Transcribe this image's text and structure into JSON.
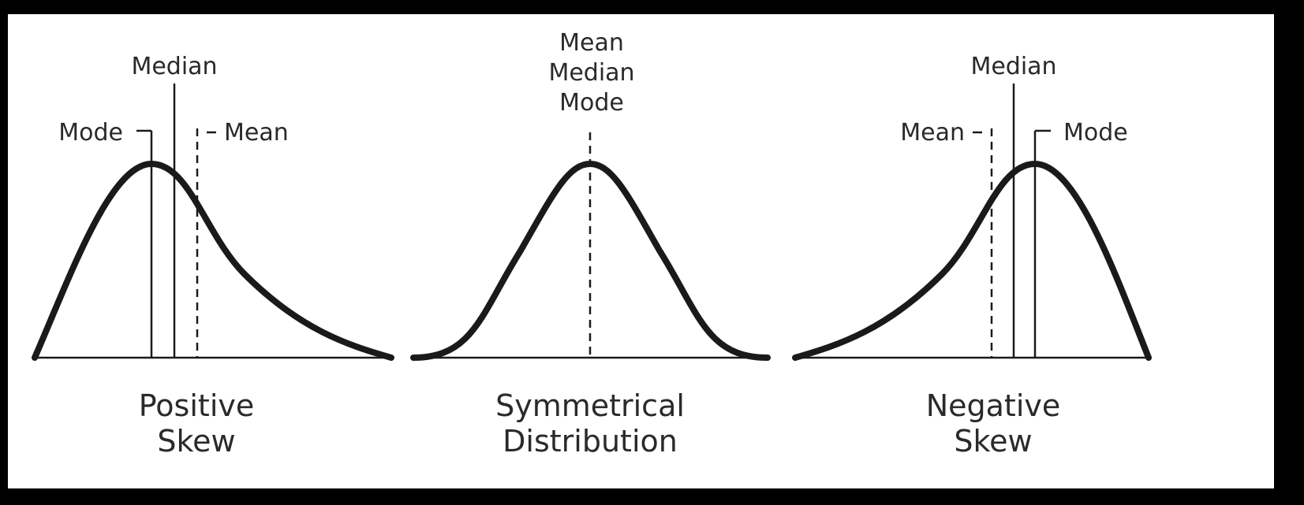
{
  "colors": {
    "background": "#000000",
    "panel": "#ffffff",
    "ink": "#1a1a1a",
    "text": "#2a2a2a"
  },
  "panels": [
    {
      "id": "positive",
      "caption_line1": "Positive",
      "caption_line2": "Skew",
      "labels": {
        "mode": "Mode",
        "median": "Median",
        "mean": "Mean"
      }
    },
    {
      "id": "symmetric",
      "caption_line1": "Symmetrical",
      "caption_line2": "Distribution",
      "labels": {
        "mean": "Mean",
        "median": "Median",
        "mode": "Mode"
      }
    },
    {
      "id": "negative",
      "caption_line1": "Negative",
      "caption_line2": "Skew",
      "labels": {
        "mean": "Mean",
        "median": "Median",
        "mode": "Mode"
      }
    }
  ]
}
